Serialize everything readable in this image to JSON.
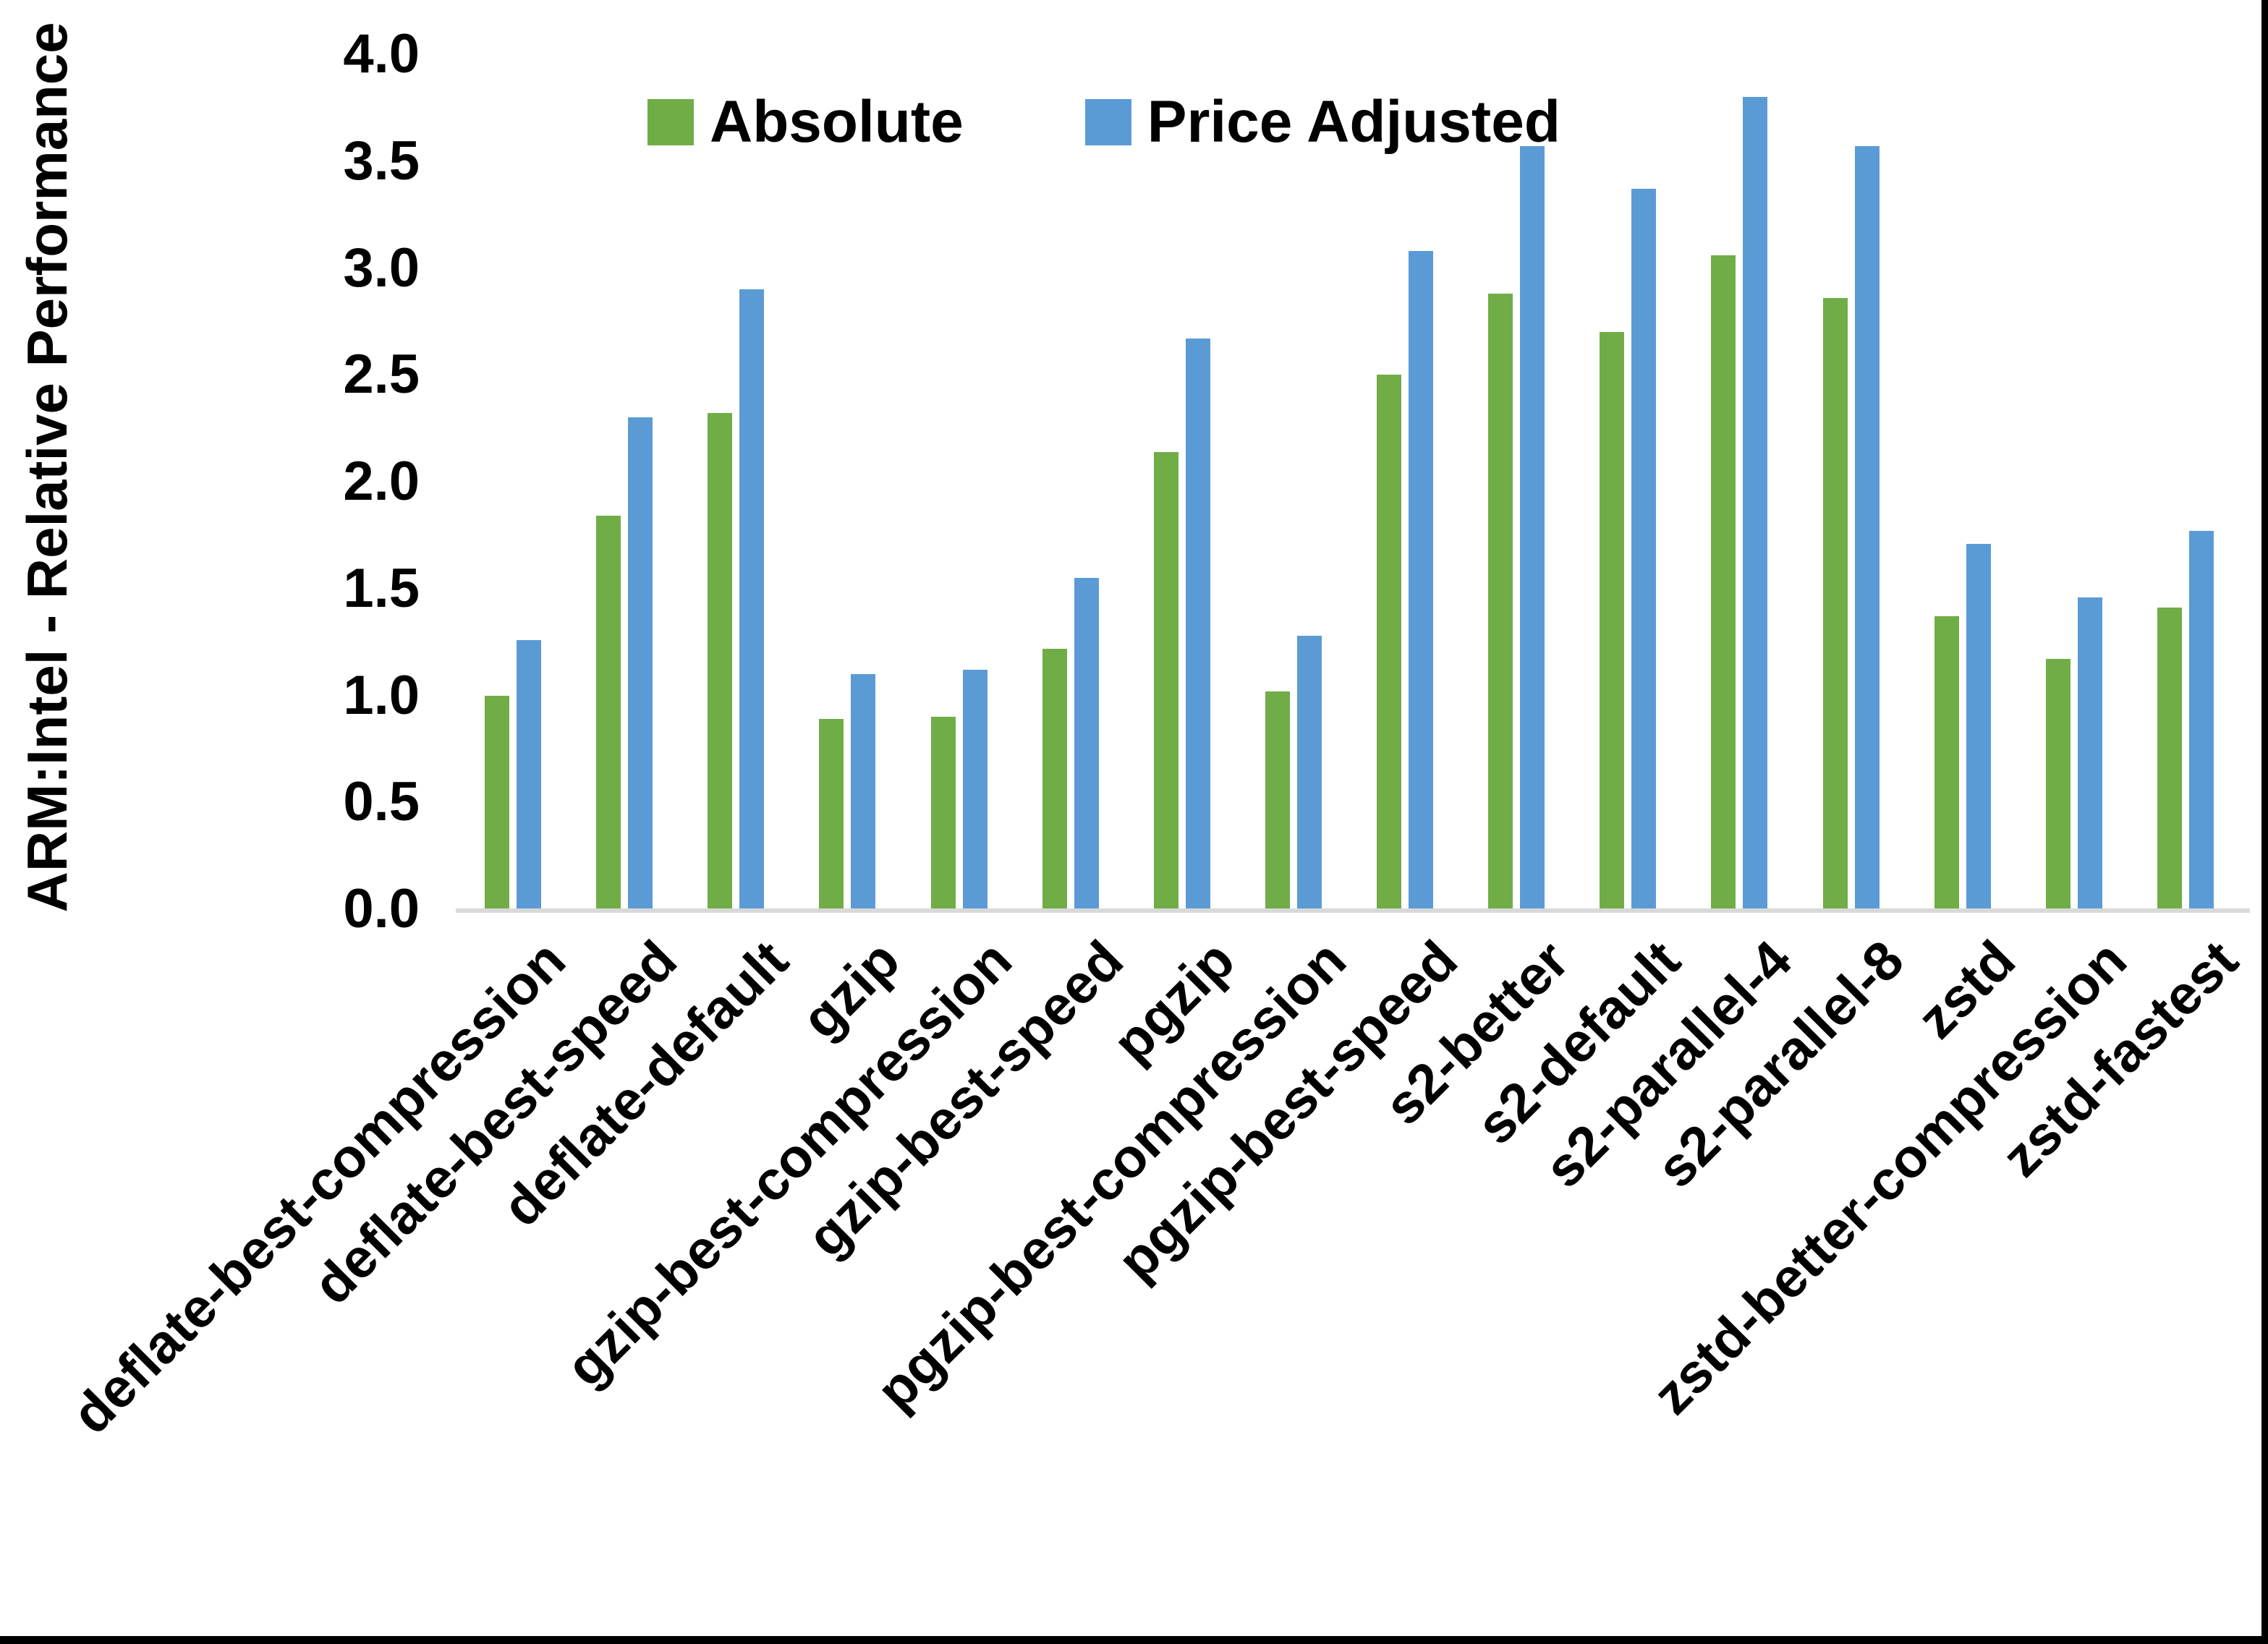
{
  "chart_data": {
    "type": "bar",
    "title": "",
    "ylabel": "ARM:Intel - Relative Performance",
    "xlabel": "",
    "ylim": [
      0.0,
      4.0
    ],
    "ytick_step": 0.5,
    "grid": false,
    "legend_position": "top-center",
    "categories": [
      "deflate-best-compression",
      "deflate-best-speed",
      "deflate-default",
      "gzip",
      "gzip-best-compression",
      "gzip-best-speed",
      "pgzip",
      "pgzip-best-compression",
      "pgzip-best-speed",
      "s2-better",
      "s2-default",
      "s2-parallel-4",
      "s2-parallel-8",
      "zstd",
      "zstd-better-compression",
      "zstd-fastest"
    ],
    "series": [
      {
        "name": "Absolute",
        "color": "#70AD47",
        "values": [
          1.0,
          1.84,
          2.32,
          0.89,
          0.9,
          1.22,
          2.14,
          1.02,
          2.5,
          2.88,
          2.7,
          3.06,
          2.86,
          1.37,
          1.17,
          1.41
        ]
      },
      {
        "name": "Price Adjusted",
        "color": "#5B9BD5",
        "values": [
          1.26,
          2.3,
          2.9,
          1.1,
          1.12,
          1.55,
          2.67,
          1.28,
          3.08,
          3.57,
          3.37,
          3.8,
          3.57,
          1.71,
          1.46,
          1.77
        ]
      }
    ]
  },
  "colors": {
    "background": "#FFFFFF",
    "axis_line": "#D9D9D9",
    "text": "#000000",
    "page_border": "#000000"
  }
}
